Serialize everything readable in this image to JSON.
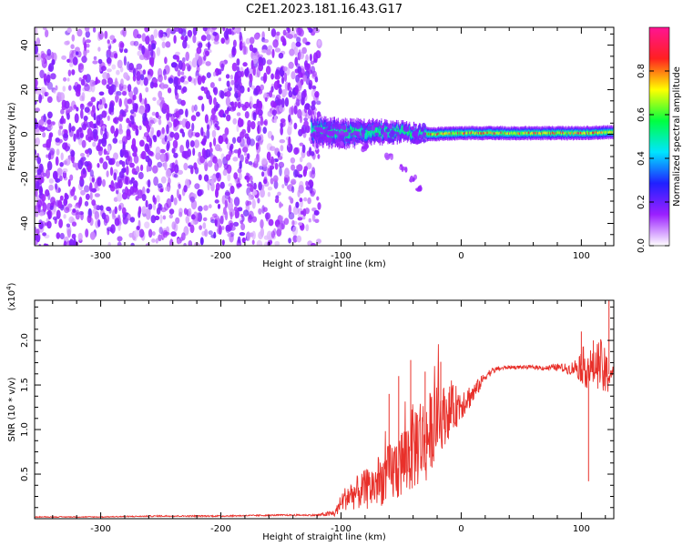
{
  "figure": {
    "title": "C2E1.2023.181.16.43.G17"
  },
  "chart_data": [
    {
      "type": "heatmap",
      "title": "C2E1.2023.181.16.43.G17",
      "xlabel": "Height of straight line (km)",
      "ylabel": "Frequency (Hz)",
      "xlim": [
        -355,
        127
      ],
      "ylim": [
        -50,
        48
      ],
      "x_ticks": [
        "-300",
        "-200",
        "-100",
        "0",
        "100"
      ],
      "y_ticks": [
        "-40",
        "-20",
        "0",
        "20",
        "40"
      ],
      "colorbar": {
        "label": "Normalized spectral amplitude",
        "range": [
          0,
          1
        ],
        "ticks": [
          "0.0",
          "0.2",
          "0.4",
          "0.6",
          "0.8"
        ],
        "colors": [
          "#ffffff",
          "#9b20ff",
          "#2020ff",
          "#00e5ff",
          "#00ff40",
          "#ffff00",
          "#ff2020",
          "#ff1493"
        ]
      },
      "noise_region": {
        "x_range": [
          -355,
          -118
        ],
        "freq_range": [
          -50,
          48
        ],
        "level": 0.25
      },
      "signal_trace": [
        {
          "x": -125,
          "freq": 2,
          "width": 6
        },
        {
          "x": -100,
          "freq": 0,
          "width": 6
        },
        {
          "x": -75,
          "freq": 1,
          "width": 5
        },
        {
          "x": -50,
          "freq": 1,
          "width": 4
        },
        {
          "x": -25,
          "freq": 0,
          "width": 3
        },
        {
          "x": 0,
          "freq": 0.5,
          "width": 3
        },
        {
          "x": 50,
          "freq": 0.5,
          "width": 3
        },
        {
          "x": 100,
          "freq": 0.5,
          "width": 3
        },
        {
          "x": 127,
          "freq": 1,
          "width": 3
        }
      ],
      "branch_trace": [
        {
          "x": -100,
          "freq": -5
        },
        {
          "x": -80,
          "freq": -6
        },
        {
          "x": -60,
          "freq": -10
        },
        {
          "x": -48,
          "freq": -15
        },
        {
          "x": -40,
          "freq": -20
        },
        {
          "x": -35,
          "freq": -24
        }
      ]
    },
    {
      "type": "line",
      "xlabel": "Height of straight line (km)",
      "ylabel": "SNR (10 * v/v)",
      "y_multiplier": "(x10^4)",
      "xlim": [
        -355,
        127
      ],
      "ylim": [
        0,
        2.45
      ],
      "x_ticks": [
        "-300",
        "-200",
        "-100",
        "0",
        "100"
      ],
      "y_ticks": [
        "0.5",
        "1.0",
        "1.5",
        "2.0"
      ],
      "series": [
        {
          "color": "#e8302a",
          "x": [
            -355,
            -300,
            -250,
            -200,
            -150,
            -120,
            -105,
            -100,
            -95,
            -85,
            -75,
            -65,
            -55,
            -45,
            -40,
            -35,
            -30,
            -25,
            -20,
            -15,
            -10,
            -5,
            0,
            5,
            10,
            15,
            20,
            25,
            30,
            40,
            50,
            60,
            70,
            80,
            90,
            95,
            100,
            105,
            110,
            115,
            120,
            127
          ],
          "y": [
            0.02,
            0.02,
            0.03,
            0.03,
            0.04,
            0.04,
            0.06,
            0.18,
            0.25,
            0.3,
            0.35,
            0.45,
            0.55,
            0.7,
            0.8,
            0.9,
            0.85,
            1.0,
            1.1,
            1.15,
            1.2,
            1.25,
            1.3,
            1.35,
            1.4,
            1.5,
            1.6,
            1.65,
            1.68,
            1.7,
            1.7,
            1.7,
            1.69,
            1.7,
            1.68,
            1.7,
            1.72,
            1.7,
            1.68,
            1.75,
            1.6,
            1.65
          ],
          "noise_amp": [
            0.005,
            0.005,
            0.008,
            0.008,
            0.008,
            0.01,
            0.04,
            0.1,
            0.15,
            0.2,
            0.25,
            0.3,
            0.38,
            0.45,
            0.5,
            0.55,
            0.5,
            0.45,
            0.4,
            0.35,
            0.3,
            0.25,
            0.2,
            0.15,
            0.12,
            0.08,
            0.05,
            0.04,
            0.03,
            0.02,
            0.02,
            0.02,
            0.03,
            0.04,
            0.06,
            0.1,
            0.2,
            0.25,
            0.2,
            0.3,
            0.3,
            0.05
          ],
          "spikes": [
            {
              "x": -60,
              "y": 1.4
            },
            {
              "x": -52,
              "y": 1.6
            },
            {
              "x": -42,
              "y": 1.78
            },
            {
              "x": -30,
              "y": 1.65
            },
            {
              "x": -17,
              "y": 1.76
            },
            {
              "x": 100,
              "y": 2.1
            },
            {
              "x": 106,
              "y": 0.42
            },
            {
              "x": 123,
              "y": 2.45
            },
            {
              "x": 110,
              "y": 2.0
            }
          ]
        }
      ]
    }
  ]
}
